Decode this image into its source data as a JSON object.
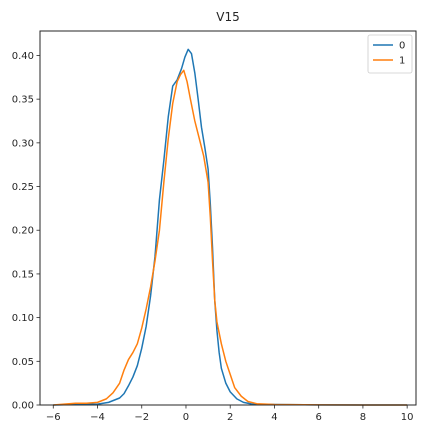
{
  "chart_data": {
    "type": "line",
    "title": "V15",
    "xlabel": "",
    "ylabel": "",
    "xlim": [
      -6.6,
      10.4
    ],
    "ylim": [
      0,
      0.428
    ],
    "xticks": [
      -6,
      -4,
      -2,
      0,
      2,
      4,
      6,
      8,
      10
    ],
    "yticks": [
      0.0,
      0.05,
      0.1,
      0.15,
      0.2,
      0.25,
      0.3,
      0.35,
      0.4
    ],
    "grid": false,
    "legend": {
      "placement": "top-right"
    },
    "series": [
      {
        "name": "0",
        "color": "#1f77b4",
        "points": [
          [
            -6.0,
            0.0
          ],
          [
            -5.0,
            0.0005
          ],
          [
            -4.0,
            0.001
          ],
          [
            -3.5,
            0.003
          ],
          [
            -3.0,
            0.008
          ],
          [
            -2.8,
            0.013
          ],
          [
            -2.6,
            0.022
          ],
          [
            -2.4,
            0.032
          ],
          [
            -2.2,
            0.045
          ],
          [
            -2.0,
            0.065
          ],
          [
            -1.8,
            0.09
          ],
          [
            -1.6,
            0.125
          ],
          [
            -1.4,
            0.17
          ],
          [
            -1.2,
            0.235
          ],
          [
            -1.0,
            0.28
          ],
          [
            -0.8,
            0.33
          ],
          [
            -0.6,
            0.365
          ],
          [
            -0.4,
            0.372
          ],
          [
            -0.2,
            0.385
          ],
          [
            -0.05,
            0.398
          ],
          [
            0.1,
            0.407
          ],
          [
            0.25,
            0.402
          ],
          [
            0.4,
            0.38
          ],
          [
            0.55,
            0.35
          ],
          [
            0.7,
            0.318
          ],
          [
            0.85,
            0.295
          ],
          [
            1.0,
            0.27
          ],
          [
            1.1,
            0.23
          ],
          [
            1.2,
            0.18
          ],
          [
            1.3,
            0.12
          ],
          [
            1.4,
            0.085
          ],
          [
            1.5,
            0.06
          ],
          [
            1.6,
            0.042
          ],
          [
            1.8,
            0.025
          ],
          [
            2.0,
            0.015
          ],
          [
            2.3,
            0.007
          ],
          [
            2.6,
            0.003
          ],
          [
            3.0,
            0.001
          ],
          [
            4.0,
            0.0005
          ],
          [
            6.0,
            0.0002
          ],
          [
            8.0,
            0.0
          ],
          [
            10.0,
            0.0
          ]
        ]
      },
      {
        "name": "1",
        "color": "#ff7f0e",
        "points": [
          [
            -6.0,
            0.0
          ],
          [
            -5.5,
            0.001
          ],
          [
            -5.0,
            0.002
          ],
          [
            -4.5,
            0.002
          ],
          [
            -4.0,
            0.003
          ],
          [
            -3.6,
            0.007
          ],
          [
            -3.3,
            0.014
          ],
          [
            -3.0,
            0.025
          ],
          [
            -2.8,
            0.04
          ],
          [
            -2.6,
            0.052
          ],
          [
            -2.4,
            0.06
          ],
          [
            -2.2,
            0.07
          ],
          [
            -2.0,
            0.088
          ],
          [
            -1.8,
            0.11
          ],
          [
            -1.6,
            0.135
          ],
          [
            -1.4,
            0.165
          ],
          [
            -1.2,
            0.2
          ],
          [
            -1.0,
            0.255
          ],
          [
            -0.8,
            0.305
          ],
          [
            -0.6,
            0.345
          ],
          [
            -0.4,
            0.37
          ],
          [
            -0.25,
            0.378
          ],
          [
            -0.1,
            0.383
          ],
          [
            0.05,
            0.37
          ],
          [
            0.2,
            0.35
          ],
          [
            0.4,
            0.325
          ],
          [
            0.6,
            0.305
          ],
          [
            0.8,
            0.285
          ],
          [
            1.0,
            0.255
          ],
          [
            1.1,
            0.215
          ],
          [
            1.2,
            0.165
          ],
          [
            1.3,
            0.12
          ],
          [
            1.4,
            0.095
          ],
          [
            1.6,
            0.07
          ],
          [
            1.8,
            0.05
          ],
          [
            2.0,
            0.035
          ],
          [
            2.2,
            0.02
          ],
          [
            2.5,
            0.01
          ],
          [
            2.8,
            0.004
          ],
          [
            3.2,
            0.0015
          ],
          [
            4.0,
            0.0005
          ],
          [
            6.0,
            0.0002
          ],
          [
            8.0,
            0.0
          ],
          [
            10.0,
            0.0
          ]
        ]
      }
    ]
  }
}
